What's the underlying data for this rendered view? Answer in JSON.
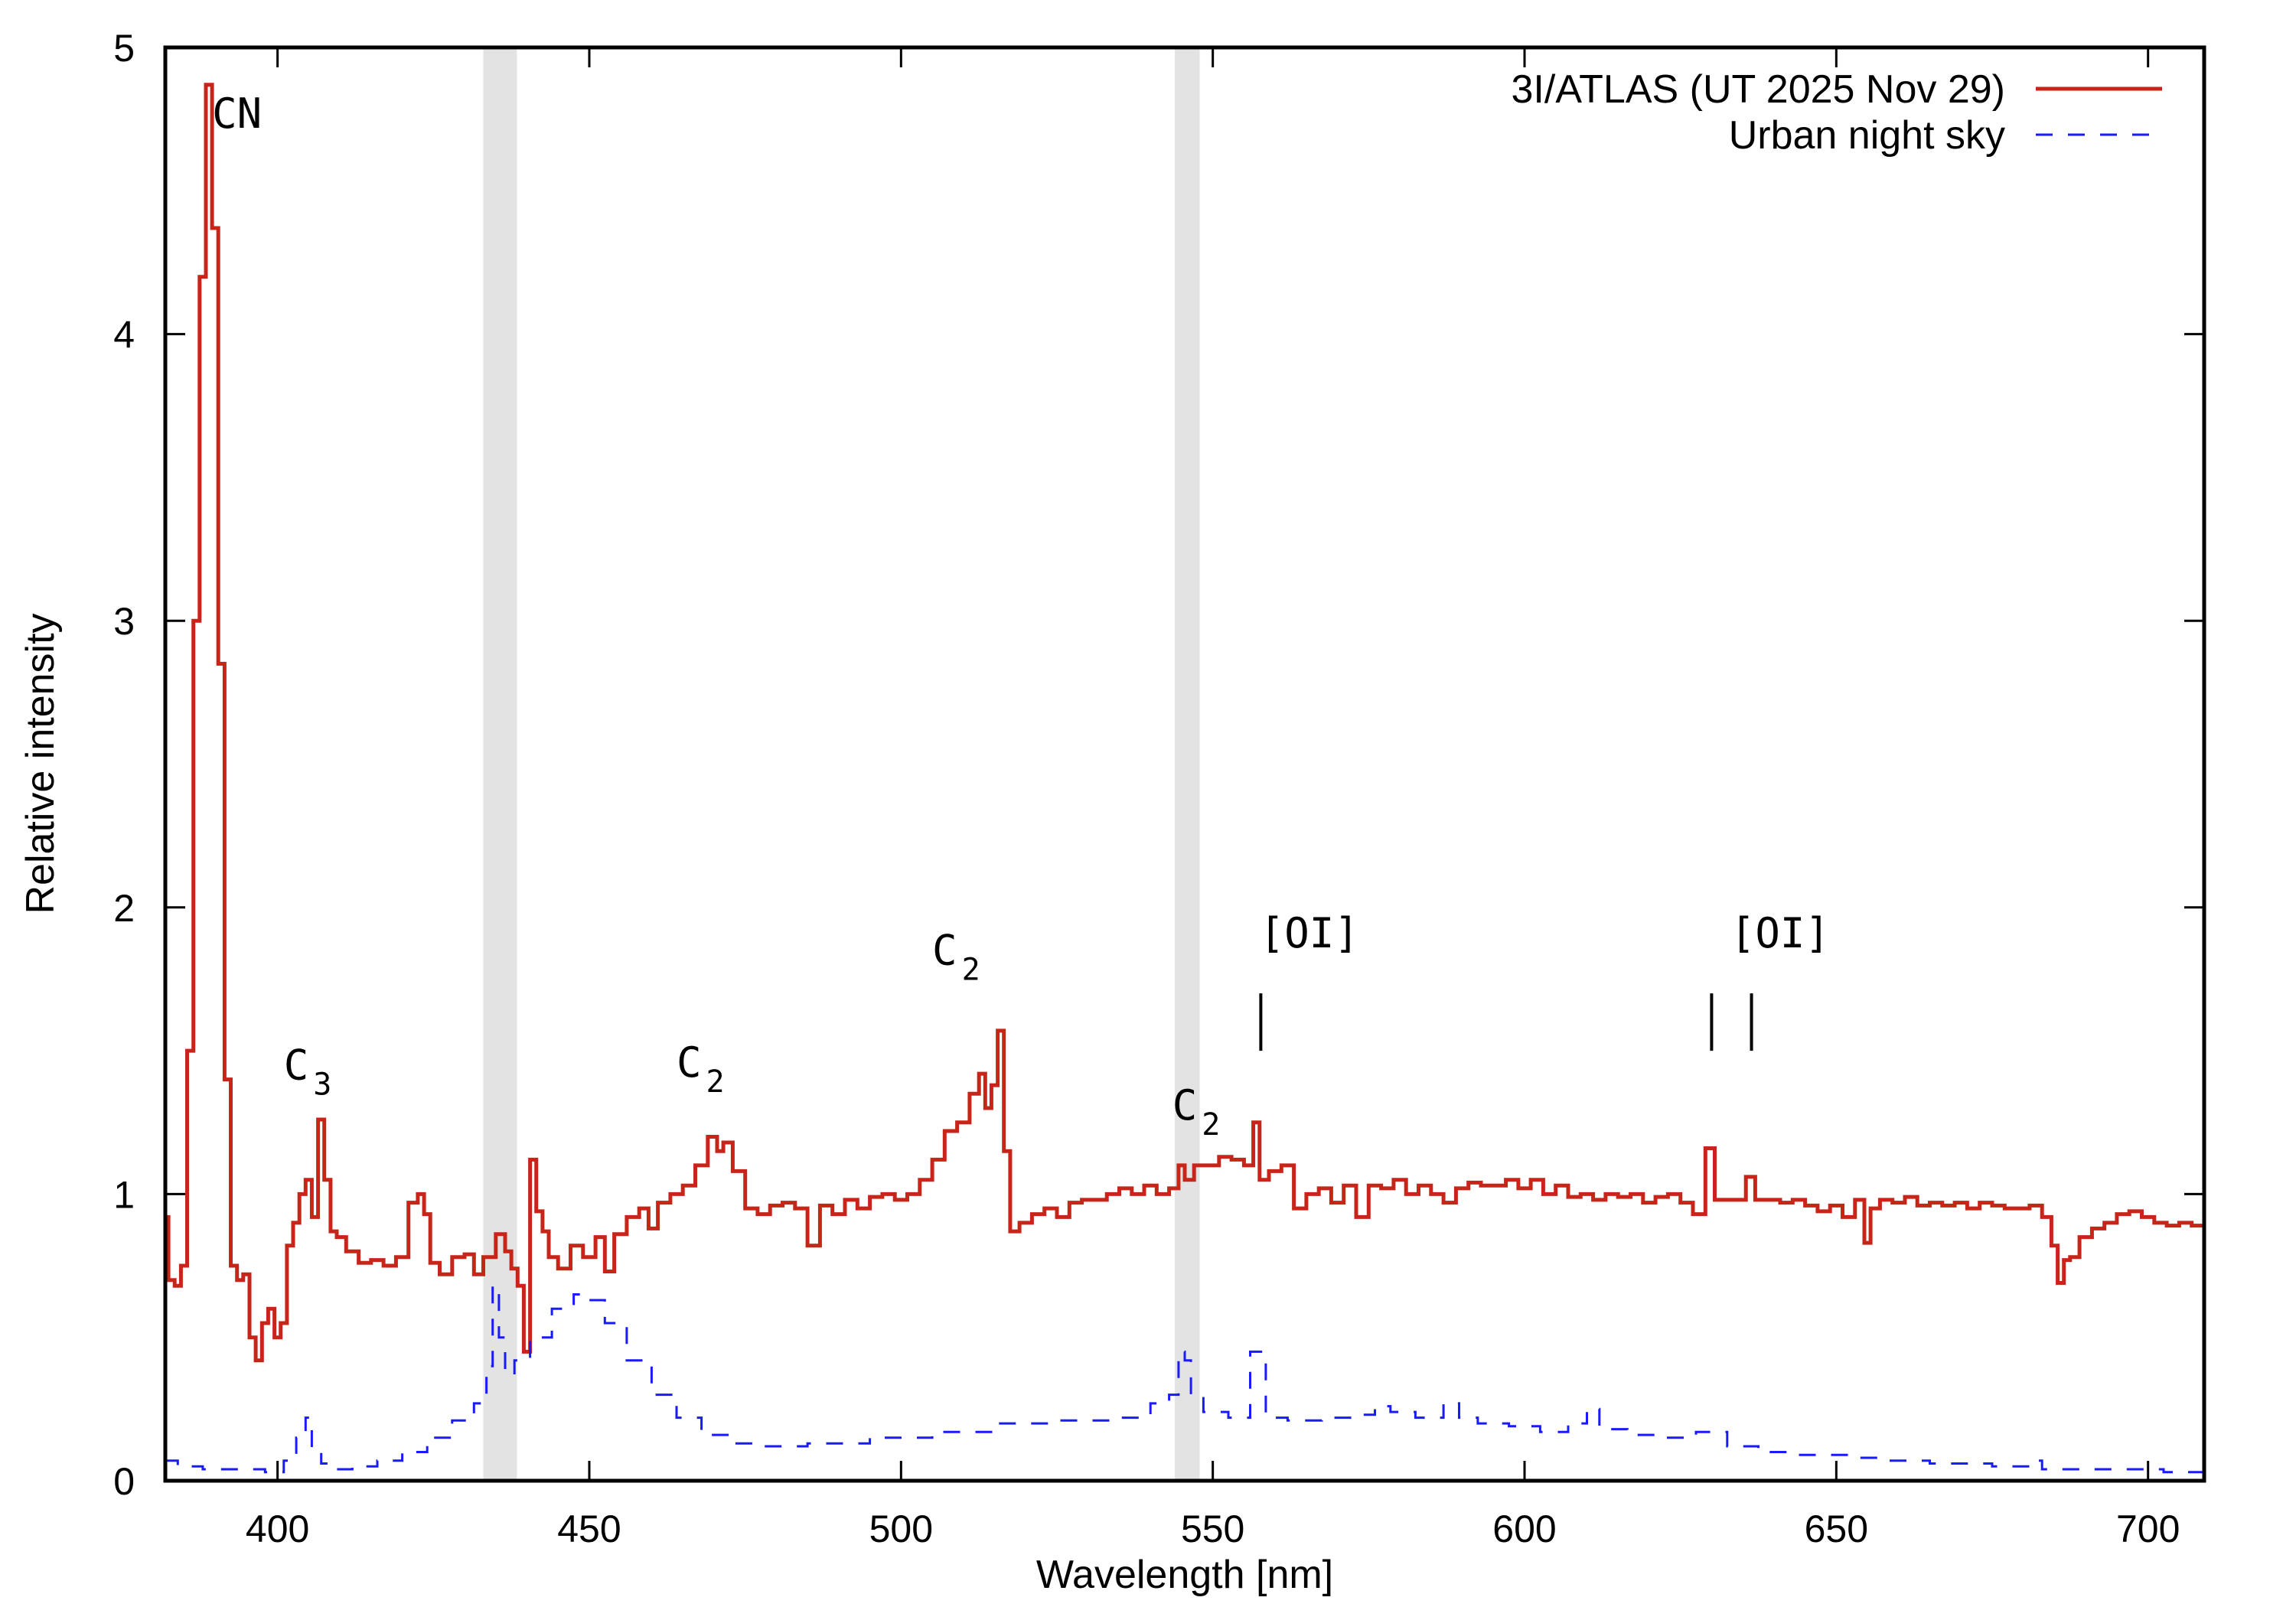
{
  "chart_data": {
    "type": "line",
    "xlabel": "Wavelength [nm]",
    "ylabel": "Relative intensity",
    "xlim": [
      382,
      709
    ],
    "ylim": [
      0,
      5
    ],
    "xticks": [
      400,
      450,
      500,
      550,
      600,
      650,
      700
    ],
    "yticks": [
      0,
      1,
      2,
      3,
      4,
      5
    ],
    "grid": false,
    "legend_position": "top-right",
    "shaded_bands": [
      [
        433,
        438.4
      ],
      [
        543.9,
        547.9
      ]
    ],
    "band_color": "#e3e3e3",
    "series": [
      {
        "name": "3I/ATLAS (UT 2025 Nov 29)",
        "color": "#c8251a",
        "style": "solid",
        "points": [
          [
            382,
            0.92
          ],
          [
            383,
            0.7
          ],
          [
            384,
            0.68
          ],
          [
            385,
            0.75
          ],
          [
            386,
            1.5
          ],
          [
            387,
            3.0
          ],
          [
            388,
            4.2
          ],
          [
            389,
            4.87
          ],
          [
            390,
            4.37
          ],
          [
            391,
            2.85
          ],
          [
            392,
            1.4
          ],
          [
            393,
            0.75
          ],
          [
            394,
            0.7
          ],
          [
            395,
            0.72
          ],
          [
            396,
            0.5
          ],
          [
            397,
            0.42
          ],
          [
            398,
            0.55
          ],
          [
            399,
            0.6
          ],
          [
            400,
            0.5
          ],
          [
            401,
            0.55
          ],
          [
            402,
            0.82
          ],
          [
            403,
            0.9
          ],
          [
            404,
            1.0
          ],
          [
            405,
            1.05
          ],
          [
            406,
            0.92
          ],
          [
            407,
            1.26
          ],
          [
            408,
            1.05
          ],
          [
            409,
            0.87
          ],
          [
            410,
            0.85
          ],
          [
            412,
            0.8
          ],
          [
            414,
            0.76
          ],
          [
            416,
            0.77
          ],
          [
            418,
            0.75
          ],
          [
            420,
            0.78
          ],
          [
            422,
            0.97
          ],
          [
            423,
            1.0
          ],
          [
            424,
            0.93
          ],
          [
            425,
            0.76
          ],
          [
            427,
            0.72
          ],
          [
            429,
            0.78
          ],
          [
            431,
            0.79
          ],
          [
            432,
            0.72
          ],
          [
            434,
            0.78
          ],
          [
            436,
            0.86
          ],
          [
            437,
            0.8
          ],
          [
            438,
            0.74
          ],
          [
            439,
            0.68
          ],
          [
            440,
            0.45
          ],
          [
            441,
            1.12
          ],
          [
            442,
            0.94
          ],
          [
            443,
            0.87
          ],
          [
            444,
            0.78
          ],
          [
            446,
            0.74
          ],
          [
            448,
            0.82
          ],
          [
            450,
            0.78
          ],
          [
            452,
            0.85
          ],
          [
            453,
            0.73
          ],
          [
            455,
            0.86
          ],
          [
            457,
            0.92
          ],
          [
            459,
            0.95
          ],
          [
            460,
            0.88
          ],
          [
            462,
            0.97
          ],
          [
            464,
            1.0
          ],
          [
            466,
            1.03
          ],
          [
            468,
            1.1
          ],
          [
            470,
            1.2
          ],
          [
            471,
            1.15
          ],
          [
            472,
            1.18
          ],
          [
            474,
            1.08
          ],
          [
            476,
            0.95
          ],
          [
            478,
            0.93
          ],
          [
            480,
            0.96
          ],
          [
            482,
            0.97
          ],
          [
            484,
            0.95
          ],
          [
            486,
            0.82
          ],
          [
            488,
            0.96
          ],
          [
            490,
            0.93
          ],
          [
            492,
            0.98
          ],
          [
            494,
            0.95
          ],
          [
            496,
            0.99
          ],
          [
            498,
            1.0
          ],
          [
            500,
            0.98
          ],
          [
            502,
            1.0
          ],
          [
            504,
            1.05
          ],
          [
            506,
            1.12
          ],
          [
            508,
            1.22
          ],
          [
            510,
            1.25
          ],
          [
            512,
            1.35
          ],
          [
            513,
            1.42
          ],
          [
            514,
            1.3
          ],
          [
            515,
            1.38
          ],
          [
            516,
            1.57
          ],
          [
            517,
            1.15
          ],
          [
            518,
            0.87
          ],
          [
            520,
            0.9
          ],
          [
            522,
            0.93
          ],
          [
            524,
            0.95
          ],
          [
            526,
            0.92
          ],
          [
            528,
            0.97
          ],
          [
            530,
            0.98
          ],
          [
            532,
            0.98
          ],
          [
            534,
            1.0
          ],
          [
            536,
            1.02
          ],
          [
            538,
            1.0
          ],
          [
            540,
            1.03
          ],
          [
            542,
            1.0
          ],
          [
            544,
            1.02
          ],
          [
            545,
            1.1
          ],
          [
            546,
            1.05
          ],
          [
            548,
            1.1
          ],
          [
            550,
            1.1
          ],
          [
            552,
            1.13
          ],
          [
            554,
            1.12
          ],
          [
            556,
            1.1
          ],
          [
            557,
            1.25
          ],
          [
            558,
            1.05
          ],
          [
            560,
            1.08
          ],
          [
            562,
            1.1
          ],
          [
            564,
            0.95
          ],
          [
            566,
            1.0
          ],
          [
            568,
            1.02
          ],
          [
            570,
            0.97
          ],
          [
            572,
            1.03
          ],
          [
            574,
            0.92
          ],
          [
            576,
            1.03
          ],
          [
            578,
            1.02
          ],
          [
            580,
            1.05
          ],
          [
            582,
            1.0
          ],
          [
            584,
            1.03
          ],
          [
            586,
            1.0
          ],
          [
            588,
            0.97
          ],
          [
            590,
            1.02
          ],
          [
            592,
            1.04
          ],
          [
            594,
            1.03
          ],
          [
            596,
            1.03
          ],
          [
            598,
            1.05
          ],
          [
            600,
            1.02
          ],
          [
            602,
            1.05
          ],
          [
            604,
            1.0
          ],
          [
            606,
            1.03
          ],
          [
            608,
            0.99
          ],
          [
            610,
            1.0
          ],
          [
            612,
            0.98
          ],
          [
            614,
            1.0
          ],
          [
            616,
            0.99
          ],
          [
            618,
            1.0
          ],
          [
            620,
            0.97
          ],
          [
            622,
            0.99
          ],
          [
            624,
            1.0
          ],
          [
            626,
            0.97
          ],
          [
            628,
            0.93
          ],
          [
            630,
            1.16
          ],
          [
            631,
            0.98
          ],
          [
            633,
            0.98
          ],
          [
            635,
            0.98
          ],
          [
            636,
            1.06
          ],
          [
            638,
            0.98
          ],
          [
            640,
            0.98
          ],
          [
            642,
            0.97
          ],
          [
            644,
            0.98
          ],
          [
            646,
            0.96
          ],
          [
            648,
            0.94
          ],
          [
            650,
            0.96
          ],
          [
            652,
            0.92
          ],
          [
            654,
            0.98
          ],
          [
            655,
            0.83
          ],
          [
            656,
            0.95
          ],
          [
            658,
            0.98
          ],
          [
            660,
            0.97
          ],
          [
            662,
            0.99
          ],
          [
            664,
            0.96
          ],
          [
            666,
            0.97
          ],
          [
            668,
            0.96
          ],
          [
            670,
            0.97
          ],
          [
            672,
            0.95
          ],
          [
            674,
            0.97
          ],
          [
            676,
            0.96
          ],
          [
            678,
            0.95
          ],
          [
            680,
            0.95
          ],
          [
            682,
            0.96
          ],
          [
            684,
            0.92
          ],
          [
            685,
            0.82
          ],
          [
            686,
            0.69
          ],
          [
            687,
            0.77
          ],
          [
            688,
            0.78
          ],
          [
            690,
            0.85
          ],
          [
            692,
            0.88
          ],
          [
            694,
            0.9
          ],
          [
            696,
            0.93
          ],
          [
            698,
            0.94
          ],
          [
            700,
            0.92
          ],
          [
            702,
            0.9
          ],
          [
            704,
            0.89
          ],
          [
            706,
            0.9
          ],
          [
            708,
            0.89
          ],
          [
            709,
            0.89
          ]
        ]
      },
      {
        "name": "Urban night sky",
        "color": "#1a1aff",
        "style": "dashed",
        "points": [
          [
            382,
            0.07
          ],
          [
            386,
            0.05
          ],
          [
            390,
            0.04
          ],
          [
            396,
            0.04
          ],
          [
            400,
            0.03
          ],
          [
            402,
            0.07
          ],
          [
            404,
            0.15
          ],
          [
            405,
            0.22
          ],
          [
            406,
            0.1
          ],
          [
            408,
            0.06
          ],
          [
            410,
            0.04
          ],
          [
            414,
            0.05
          ],
          [
            418,
            0.07
          ],
          [
            422,
            0.1
          ],
          [
            426,
            0.15
          ],
          [
            430,
            0.21
          ],
          [
            433,
            0.27
          ],
          [
            434,
            0.4
          ],
          [
            435,
            0.68
          ],
          [
            436,
            0.5
          ],
          [
            437,
            0.37
          ],
          [
            439,
            0.42
          ],
          [
            442,
            0.5
          ],
          [
            446,
            0.6
          ],
          [
            449,
            0.65
          ],
          [
            451,
            0.63
          ],
          [
            454,
            0.55
          ],
          [
            458,
            0.42
          ],
          [
            462,
            0.3
          ],
          [
            466,
            0.22
          ],
          [
            470,
            0.16
          ],
          [
            475,
            0.13
          ],
          [
            480,
            0.12
          ],
          [
            490,
            0.13
          ],
          [
            500,
            0.15
          ],
          [
            510,
            0.17
          ],
          [
            520,
            0.2
          ],
          [
            530,
            0.21
          ],
          [
            538,
            0.22
          ],
          [
            542,
            0.27
          ],
          [
            544,
            0.3
          ],
          [
            545,
            0.45
          ],
          [
            546,
            0.42
          ],
          [
            547,
            0.3
          ],
          [
            550,
            0.24
          ],
          [
            555,
            0.22
          ],
          [
            557,
            0.45
          ],
          [
            558,
            0.45
          ],
          [
            559,
            0.22
          ],
          [
            565,
            0.21
          ],
          [
            570,
            0.22
          ],
          [
            575,
            0.23
          ],
          [
            577,
            0.26
          ],
          [
            580,
            0.24
          ],
          [
            585,
            0.22
          ],
          [
            589,
            0.27
          ],
          [
            590,
            0.22
          ],
          [
            595,
            0.2
          ],
          [
            600,
            0.19
          ],
          [
            605,
            0.17
          ],
          [
            609,
            0.2
          ],
          [
            611,
            0.25
          ],
          [
            613,
            0.18
          ],
          [
            620,
            0.16
          ],
          [
            625,
            0.15
          ],
          [
            630,
            0.17
          ],
          [
            635,
            0.12
          ],
          [
            640,
            0.1
          ],
          [
            645,
            0.09
          ],
          [
            650,
            0.09
          ],
          [
            655,
            0.08
          ],
          [
            660,
            0.07
          ],
          [
            670,
            0.06
          ],
          [
            680,
            0.05
          ],
          [
            682,
            0.07
          ],
          [
            684,
            0.04
          ],
          [
            690,
            0.04
          ],
          [
            700,
            0.04
          ],
          [
            705,
            0.03
          ],
          [
            709,
            0.03
          ]
        ]
      }
    ],
    "annotations": [
      {
        "text": "CN",
        "sub": "",
        "x": 389.5,
        "y": 4.72
      },
      {
        "text": "C",
        "sub": "3",
        "x": 401,
        "y": 1.4
      },
      {
        "text": "C",
        "sub": "2",
        "x": 464,
        "y": 1.41
      },
      {
        "text": "C",
        "sub": "2",
        "x": 505,
        "y": 1.8
      },
      {
        "text": "C",
        "sub": "2",
        "x": 543.5,
        "y": 1.26
      },
      {
        "text": "[OI]",
        "sub": "",
        "x": 557.5,
        "y": 1.86
      },
      {
        "text": "[OI]",
        "sub": "",
        "x": 633,
        "y": 1.86
      }
    ],
    "line_markers": [
      557.7,
      630.0,
      636.4
    ],
    "line_marker_range": [
      1.5,
      1.7
    ]
  }
}
